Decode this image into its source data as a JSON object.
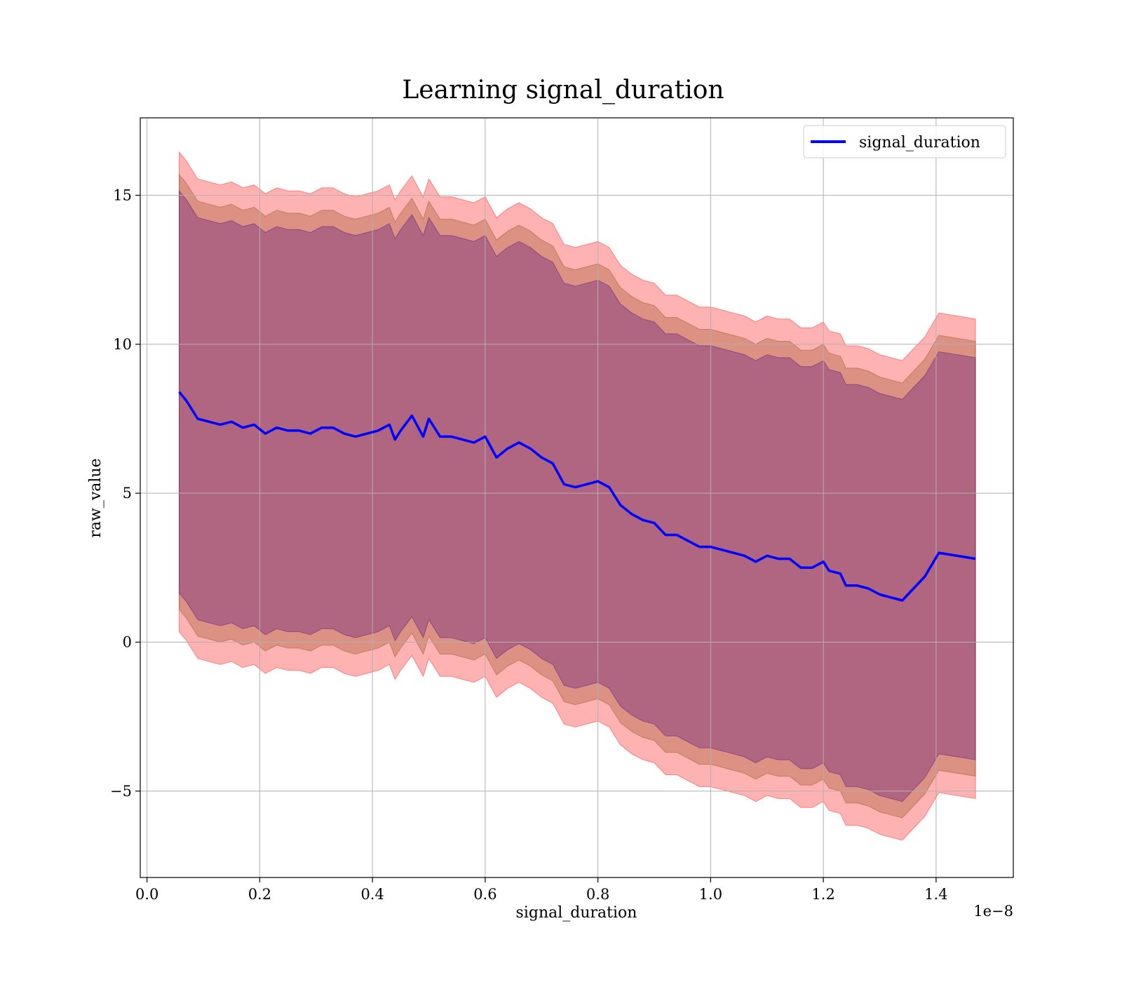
{
  "chart_data": {
    "type": "line",
    "title": "Learning signal_duration",
    "xlabel": "signal_duration",
    "ylabel": "raw_value",
    "x_multiplier_label": "1e−8",
    "xlim": [
      -0.012,
      1.537
    ],
    "ylim": [
      -7.9,
      17.6
    ],
    "grid": true,
    "legend_position": "top-right",
    "x_ticks": [
      0.0,
      0.2,
      0.4,
      0.6,
      0.8,
      1.0,
      1.2,
      1.4
    ],
    "x_tick_labels": [
      "0.0",
      "0.2",
      "0.4",
      "0.6",
      "0.8",
      "1.0",
      "1.2",
      "1.4"
    ],
    "y_ticks": [
      -5,
      0,
      5,
      10,
      15
    ],
    "y_tick_labels": [
      "−5",
      "0",
      "5",
      "10",
      "15"
    ],
    "colors": {
      "line": "#0000ff",
      "band_outer": "#ff0000",
      "band_middle": "#8b4513",
      "band_inner": "#4b0082"
    },
    "series": [
      {
        "name": "signal_duration",
        "x": [
          0.057,
          0.07,
          0.09,
          0.11,
          0.13,
          0.15,
          0.17,
          0.19,
          0.21,
          0.23,
          0.25,
          0.27,
          0.29,
          0.31,
          0.33,
          0.35,
          0.37,
          0.39,
          0.41,
          0.43,
          0.44,
          0.45,
          0.47,
          0.49,
          0.5,
          0.52,
          0.54,
          0.56,
          0.58,
          0.6,
          0.62,
          0.64,
          0.66,
          0.68,
          0.7,
          0.72,
          0.74,
          0.76,
          0.78,
          0.8,
          0.82,
          0.84,
          0.86,
          0.88,
          0.9,
          0.92,
          0.94,
          0.96,
          0.98,
          1.0,
          1.02,
          1.04,
          1.06,
          1.08,
          1.1,
          1.12,
          1.14,
          1.16,
          1.18,
          1.2,
          1.21,
          1.23,
          1.24,
          1.26,
          1.28,
          1.3,
          1.32,
          1.34,
          1.35,
          1.38,
          1.405,
          1.47
        ],
        "y": [
          8.4,
          8.1,
          7.5,
          7.4,
          7.3,
          7.4,
          7.2,
          7.3,
          7.0,
          7.2,
          7.1,
          7.1,
          7.0,
          7.2,
          7.2,
          7.0,
          6.9,
          7.0,
          7.1,
          7.3,
          6.8,
          7.1,
          7.6,
          6.9,
          7.5,
          6.9,
          6.9,
          6.8,
          6.7,
          6.9,
          6.2,
          6.5,
          6.7,
          6.5,
          6.2,
          6.0,
          5.3,
          5.2,
          5.3,
          5.4,
          5.2,
          4.6,
          4.3,
          4.1,
          4.0,
          3.6,
          3.6,
          3.4,
          3.2,
          3.2,
          3.1,
          3.0,
          2.9,
          2.7,
          2.9,
          2.8,
          2.8,
          2.5,
          2.5,
          2.7,
          2.4,
          2.3,
          1.9,
          1.9,
          1.8,
          1.6,
          1.5,
          1.4,
          1.6,
          2.2,
          3.0,
          2.8
        ]
      }
    ],
    "bands": [
      {
        "level": "outer",
        "half_width": 8.05
      },
      {
        "level": "middle",
        "half_width": 7.3
      },
      {
        "level": "inner",
        "half_width": 6.75
      }
    ]
  }
}
